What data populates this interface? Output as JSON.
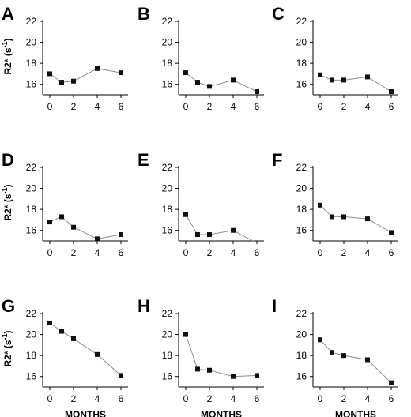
{
  "figure": {
    "x_axis_title": "MONTHS",
    "y_axis_title": "R2* (s",
    "y_axis_title_sup": "-1",
    "y_axis_title_close": ")"
  },
  "colors": {
    "series_line": "#8c8c8c",
    "marker": "#111111",
    "axis": "#000000"
  },
  "chart_data": [
    {
      "panel": "A",
      "type": "line",
      "x": [
        0,
        1,
        2,
        4,
        6
      ],
      "values": [
        17.0,
        16.2,
        16.3,
        17.5,
        17.1
      ],
      "xticks": [
        0,
        2,
        4,
        6
      ],
      "yticks": [
        16,
        18,
        20,
        22
      ],
      "ylim": [
        15,
        22
      ],
      "xlim": [
        -0.6,
        6.6
      ]
    },
    {
      "panel": "B",
      "type": "line",
      "x": [
        0,
        1,
        2,
        4,
        6
      ],
      "values": [
        17.1,
        16.2,
        15.8,
        16.4,
        15.3
      ],
      "xticks": [
        0,
        2,
        4,
        6
      ],
      "yticks": [
        16,
        18,
        20,
        22
      ],
      "ylim": [
        15,
        22
      ],
      "xlim": [
        -0.6,
        6.6
      ]
    },
    {
      "panel": "C",
      "type": "line",
      "x": [
        0,
        1,
        2,
        4,
        6
      ],
      "values": [
        16.9,
        16.4,
        16.4,
        16.7,
        15.3
      ],
      "xticks": [
        0,
        2,
        4,
        6
      ],
      "yticks": [
        16,
        18,
        20,
        22
      ],
      "ylim": [
        15,
        22
      ],
      "xlim": [
        -0.6,
        6.6
      ]
    },
    {
      "panel": "D",
      "type": "line",
      "x": [
        0,
        1,
        2,
        4,
        6
      ],
      "values": [
        16.8,
        17.3,
        16.3,
        15.2,
        15.6
      ],
      "xticks": [
        0,
        2,
        4,
        6
      ],
      "yticks": [
        16,
        18,
        20,
        22
      ],
      "ylim": [
        15,
        22
      ],
      "xlim": [
        -0.6,
        6.6
      ]
    },
    {
      "panel": "E",
      "type": "line",
      "x": [
        0,
        1,
        2,
        4,
        6
      ],
      "values": [
        17.5,
        15.6,
        15.6,
        16.0,
        14.8
      ],
      "xticks": [
        0,
        2,
        4,
        6
      ],
      "yticks": [
        16,
        18,
        20,
        22
      ],
      "ylim": [
        15,
        22
      ],
      "xlim": [
        -0.6,
        6.6
      ]
    },
    {
      "panel": "F",
      "type": "line",
      "x": [
        0,
        1,
        2,
        4,
        6
      ],
      "values": [
        18.4,
        17.3,
        17.3,
        17.1,
        15.8
      ],
      "xticks": [
        0,
        2,
        4,
        6
      ],
      "yticks": [
        16,
        18,
        20,
        22
      ],
      "ylim": [
        15,
        22
      ],
      "xlim": [
        -0.6,
        6.6
      ]
    },
    {
      "panel": "G",
      "type": "line",
      "x": [
        0,
        1,
        2,
        4,
        6
      ],
      "values": [
        21.1,
        20.3,
        19.6,
        18.1,
        16.1
      ],
      "xticks": [
        0,
        2,
        4,
        6
      ],
      "yticks": [
        16,
        18,
        20,
        22
      ],
      "ylim": [
        15,
        22
      ],
      "xlim": [
        -0.6,
        6.6
      ]
    },
    {
      "panel": "H",
      "type": "line",
      "x": [
        0,
        1,
        2,
        4,
        6
      ],
      "values": [
        20.0,
        16.7,
        16.6,
        16.0,
        16.1
      ],
      "xticks": [
        0,
        2,
        4,
        6
      ],
      "yticks": [
        16,
        18,
        20,
        22
      ],
      "ylim": [
        15,
        22
      ],
      "xlim": [
        -0.6,
        6.6
      ]
    },
    {
      "panel": "I",
      "type": "line",
      "x": [
        0,
        1,
        2,
        4,
        6
      ],
      "values": [
        19.5,
        18.3,
        18.0,
        17.6,
        15.4
      ],
      "xticks": [
        0,
        2,
        4,
        6
      ],
      "yticks": [
        16,
        18,
        20,
        22
      ],
      "ylim": [
        15,
        22
      ],
      "xlim": [
        -0.6,
        6.6
      ]
    }
  ]
}
